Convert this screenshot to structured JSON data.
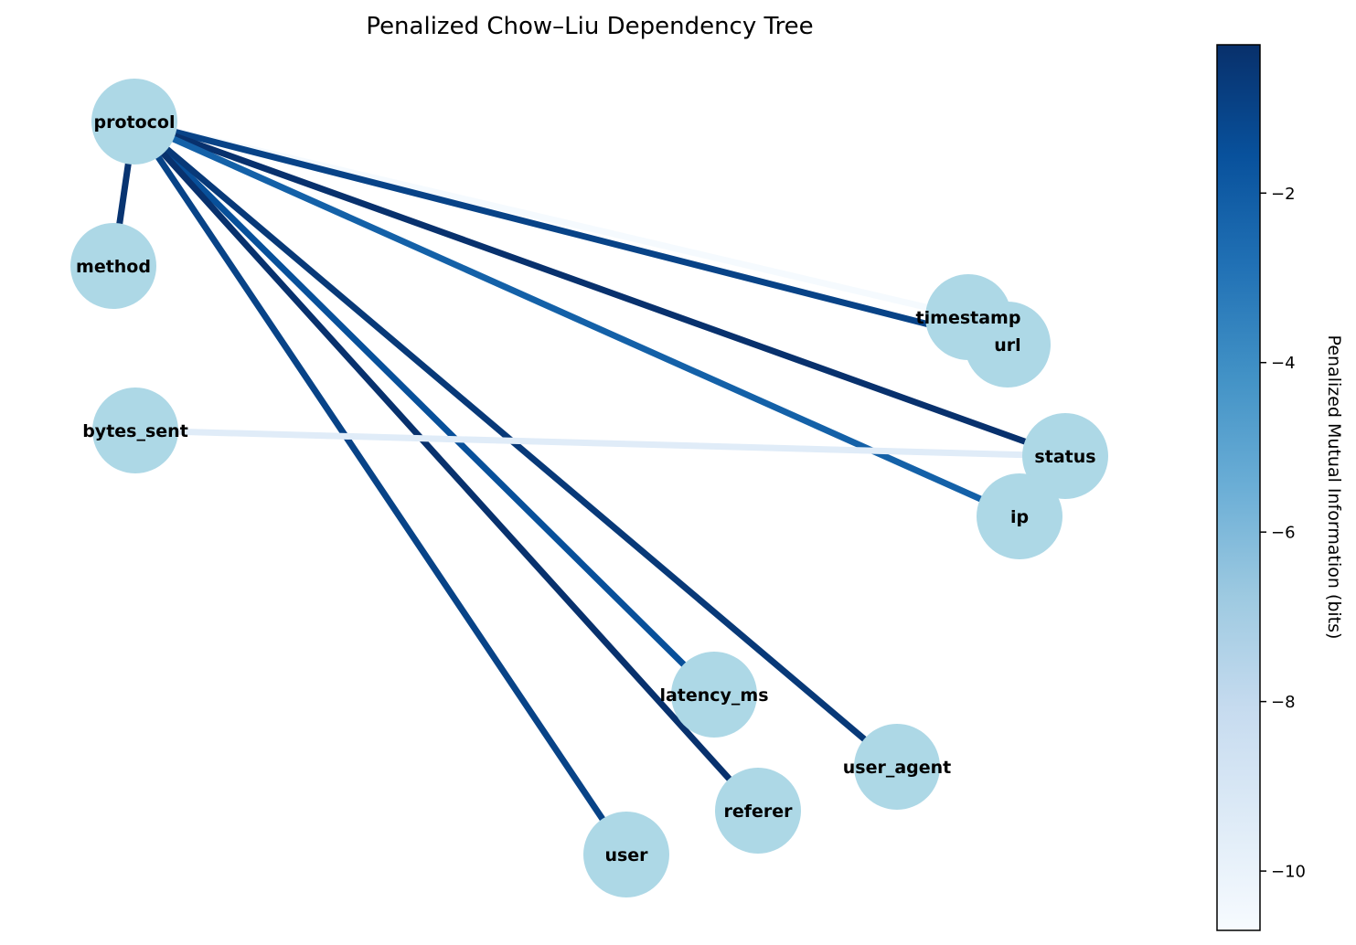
{
  "title": "Penalized Chow–Liu Dependency Tree",
  "colormap": {
    "name": "Blues",
    "stops": [
      "#f7fbff",
      "#deebf7",
      "#c6dbef",
      "#9ecae1",
      "#6baed6",
      "#4292c6",
      "#2171b5",
      "#08519c",
      "#08306b"
    ]
  },
  "node_color": "#add8e6",
  "nodes": [
    {
      "id": "protocol",
      "label": "protocol"
    },
    {
      "id": "method",
      "label": "method"
    },
    {
      "id": "bytes_sent",
      "label": "bytes_sent"
    },
    {
      "id": "timestamp",
      "label": "timestamp"
    },
    {
      "id": "url",
      "label": "url"
    },
    {
      "id": "status",
      "label": "status"
    },
    {
      "id": "ip",
      "label": "ip"
    },
    {
      "id": "latency_ms",
      "label": "latency_ms"
    },
    {
      "id": "user_agent",
      "label": "user_agent"
    },
    {
      "id": "referer",
      "label": "referer"
    },
    {
      "id": "user",
      "label": "user"
    }
  ],
  "edges": [
    {
      "source": "protocol",
      "target": "method",
      "weight": -0.4
    },
    {
      "source": "protocol",
      "target": "timestamp",
      "weight": -10.6
    },
    {
      "source": "protocol",
      "target": "url",
      "weight": -1.0
    },
    {
      "source": "protocol",
      "target": "status",
      "weight": -0.3
    },
    {
      "source": "protocol",
      "target": "ip",
      "weight": -2.2
    },
    {
      "source": "protocol",
      "target": "latency_ms",
      "weight": -1.5
    },
    {
      "source": "protocol",
      "target": "referer",
      "weight": -0.3
    },
    {
      "source": "protocol",
      "target": "user_agent",
      "weight": -0.6
    },
    {
      "source": "protocol",
      "target": "user",
      "weight": -1.0
    },
    {
      "source": "bytes_sent",
      "target": "status",
      "weight": -9.5
    }
  ],
  "colorbar": {
    "label": "Penalized Mutual Information (bits)",
    "vmin": -10.7,
    "vmax": -0.25,
    "ticks": [
      -2,
      -4,
      -6,
      -8,
      -10
    ],
    "tick_labels": [
      "−2",
      "−4",
      "−6",
      "−8",
      "−10"
    ]
  }
}
